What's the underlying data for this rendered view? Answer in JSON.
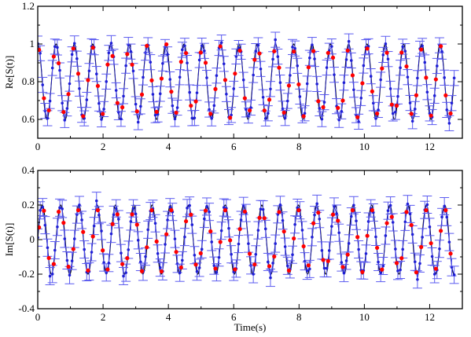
{
  "chart_data": [
    {
      "type": "scatter",
      "panel": "top",
      "title": "",
      "xlabel": "",
      "ylabel": "Re[S(t)]",
      "xlim": [
        0,
        13.0
      ],
      "ylim": [
        0.5,
        1.2
      ],
      "xticks": [
        "0",
        "2",
        "4",
        "6",
        "8",
        "10",
        "12"
      ],
      "yticks": [
        "0.6",
        "0.8",
        "1",
        "1.2"
      ],
      "grid": false,
      "legend": "none",
      "model_curve": {
        "style": "black solid line",
        "form": "0.8 + 0.2*cos(2*pi*t/0.56)",
        "center": 0.8,
        "amplitude": 0.2,
        "period": 0.56,
        "t_range": [
          0,
          12.75
        ]
      },
      "measured": {
        "style": "blue points with error bars joined by thin blue line",
        "t_step": 0.075,
        "t_range": [
          0,
          12.75
        ],
        "error_bar": 0.04,
        "approx_range": [
          0.55,
          1.03
        ]
      },
      "simulated": {
        "style": "red dots",
        "t_step": 0.15,
        "t_range": [
          0,
          12.75
        ],
        "approx_range": [
          0.58,
          1.0
        ]
      }
    },
    {
      "type": "scatter",
      "panel": "bottom",
      "title": "",
      "xlabel": "Time(s)",
      "ylabel": "Im[S(t)]",
      "xlim": [
        0,
        13.0
      ],
      "ylim": [
        -0.4,
        0.4
      ],
      "xticks": [
        "0",
        "2",
        "4",
        "6",
        "8",
        "10",
        "12"
      ],
      "yticks": [
        "-0.4",
        "-0.2",
        "0",
        "0.2",
        "0.4"
      ],
      "grid": false,
      "legend": "none",
      "model_curve": {
        "style": "black solid line",
        "form": "0.2*sin(2*pi*t/0.56)",
        "center": 0,
        "amplitude": 0.2,
        "period": 0.56,
        "t_range": [
          0,
          12.75
        ]
      },
      "measured": {
        "style": "blue points with error bars joined by thin blue line",
        "t_step": 0.075,
        "t_range": [
          0,
          12.75
        ],
        "error_bar": 0.05,
        "approx_range": [
          -0.3,
          0.23
        ]
      },
      "simulated": {
        "style": "red dots",
        "t_step": 0.15,
        "t_range": [
          0,
          12.75
        ],
        "approx_range": [
          -0.25,
          0.17
        ]
      }
    }
  ],
  "colors": {
    "model": "#000000",
    "measured": "#1f1fd6",
    "error_bar": "#5b5bf0",
    "simulated": "#ff0000",
    "frame": "#000000"
  }
}
